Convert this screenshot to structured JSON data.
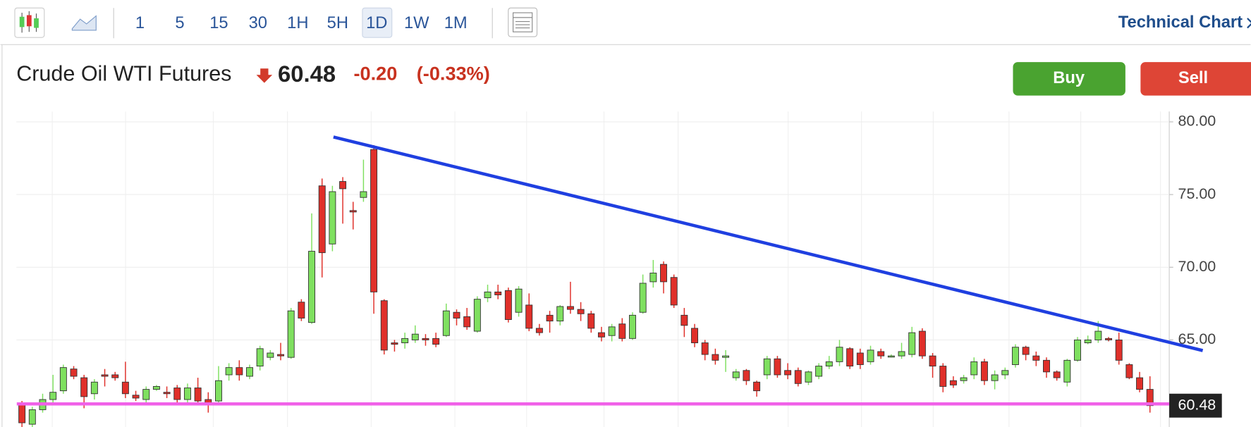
{
  "toolbar": {
    "intervals": [
      "1",
      "5",
      "15",
      "30",
      "1H",
      "5H",
      "1D",
      "1W",
      "1M"
    ],
    "link": "Technical Chart"
  },
  "header": {
    "instrument": "Crude Oil WTI Futures",
    "change": "-0.20",
    "change_pct": "(-0.33%)",
    "buy": "Buy",
    "sell": "Sell"
  },
  "chart_data": {
    "type": "candlestick",
    "up_color": "#7fe060",
    "down_color": "#e0302a",
    "ylim": [
      59.0,
      80.7
    ],
    "yticks": [
      {
        "value": 65,
        "label": "65.00"
      },
      {
        "value": 70,
        "label": "70.00"
      },
      {
        "value": 75,
        "label": "75.00"
      },
      {
        "value": 80,
        "label": "80.00"
      }
    ],
    "grid": true,
    "open": [
      60.6,
      59.2,
      60.2,
      60.9,
      61.5,
      63.0,
      62.4,
      61.3,
      62.6,
      62.6,
      62.1,
      61.2,
      60.9,
      61.6,
      61.4,
      61.7,
      60.9,
      61.7,
      60.9,
      60.8,
      62.6,
      63.1,
      62.5,
      63.2,
      63.8,
      64.0,
      63.8,
      67.6,
      66.2,
      75.6,
      71.6,
      75.9,
      73.9,
      74.8,
      78.1,
      67.7,
      64.8,
      64.8,
      65.0,
      65.1,
      65.1,
      65.3,
      66.9,
      66.6,
      65.6,
      67.9,
      68.3,
      68.4,
      66.9,
      67.4,
      65.8,
      66.7,
      66.3,
      67.3,
      67.1,
      66.8,
      65.5,
      65.3,
      66.1,
      65.1,
      66.9,
      69.0,
      70.2,
      69.3,
      66.7,
      65.8,
      64.8,
      64.0,
      63.8,
      62.4,
      62.9,
      62.1,
      62.6,
      63.7,
      62.9,
      62.9,
      62.1,
      62.5,
      63.2,
      63.5,
      64.4,
      64.1,
      63.5,
      64.2,
      63.9,
      63.9,
      64.0,
      65.6,
      63.9,
      63.2,
      62.2,
      62.2,
      62.6,
      63.5,
      62.2,
      62.6,
      63.3,
      64.5,
      63.9,
      63.6,
      62.8,
      62.1,
      63.6,
      64.8,
      65.0,
      65.1,
      65.0,
      63.3,
      62.4,
      61.6
    ],
    "high": [
      60.8,
      60.4,
      61.3,
      62.6,
      63.3,
      63.2,
      62.6,
      62.3,
      63.0,
      62.8,
      63.5,
      61.5,
      61.8,
      61.9,
      61.8,
      61.9,
      62.0,
      62.4,
      61.4,
      63.2,
      63.4,
      63.6,
      63.3,
      64.6,
      64.3,
      64.8,
      67.2,
      67.8,
      73.7,
      76.1,
      75.6,
      76.2,
      74.5,
      77.4,
      78.4,
      67.8,
      65.0,
      65.5,
      66.0,
      65.4,
      65.5,
      67.5,
      67.1,
      67.2,
      68.0,
      68.8,
      68.8,
      68.6,
      68.7,
      68.2,
      66.1,
      67.0,
      67.4,
      69.0,
      67.6,
      67.0,
      65.9,
      66.1,
      66.5,
      66.9,
      69.5,
      70.5,
      70.4,
      69.5,
      67.2,
      66.1,
      65.0,
      64.4,
      64.3,
      63.0,
      63.0,
      62.2,
      63.9,
      63.9,
      63.4,
      63.1,
      62.9,
      63.4,
      63.9,
      65.0,
      64.5,
      64.4,
      64.6,
      64.4,
      64.0,
      64.8,
      65.9,
      65.8,
      64.1,
      63.4,
      62.5,
      62.6,
      63.8,
      63.7,
      62.9,
      63.1,
      64.7,
      64.6,
      64.2,
      63.8,
      62.9,
      63.7,
      65.2,
      65.3,
      66.3,
      65.2,
      65.5,
      63.4,
      62.8,
      62.5
    ],
    "low": [
      59.0,
      59.0,
      60.0,
      60.7,
      61.3,
      62.3,
      60.3,
      60.9,
      61.8,
      62.2,
      61.0,
      60.8,
      60.5,
      61.5,
      61.0,
      60.5,
      60.7,
      60.5,
      60.0,
      60.7,
      62.2,
      62.2,
      62.3,
      62.9,
      63.6,
      63.6,
      63.7,
      66.3,
      66.1,
      69.3,
      71.1,
      73.0,
      72.6,
      74.5,
      66.8,
      64.0,
      64.2,
      64.4,
      64.8,
      64.6,
      64.5,
      65.2,
      66.0,
      65.7,
      65.5,
      67.6,
      67.8,
      66.2,
      66.6,
      65.6,
      65.3,
      65.5,
      66.0,
      66.8,
      66.3,
      65.5,
      64.9,
      64.9,
      64.9,
      65.0,
      66.8,
      68.6,
      68.2,
      67.2,
      65.2,
      64.5,
      63.6,
      63.3,
      62.8,
      62.2,
      61.9,
      61.1,
      62.3,
      62.4,
      62.3,
      61.8,
      61.9,
      62.3,
      63.0,
      63.2,
      63.0,
      63.0,
      63.3,
      63.7,
      63.8,
      63.7,
      63.8,
      63.7,
      62.4,
      61.4,
      61.7,
      62.0,
      62.3,
      61.9,
      61.6,
      62.3,
      63.1,
      63.6,
      63.2,
      62.4,
      62.2,
      61.8,
      63.5,
      64.7,
      64.8,
      64.9,
      63.3,
      62.3,
      61.4,
      60.0
    ],
    "close": [
      59.3,
      60.2,
      60.9,
      61.4,
      63.1,
      62.5,
      61.1,
      62.1,
      62.5,
      62.4,
      61.3,
      61.0,
      61.6,
      61.8,
      61.3,
      60.9,
      61.7,
      60.8,
      60.6,
      62.2,
      63.1,
      62.6,
      63.1,
      64.4,
      64.1,
      63.9,
      67.0,
      66.5,
      71.1,
      71.0,
      75.2,
      75.4,
      73.8,
      75.2,
      68.3,
      64.3,
      64.7,
      65.1,
      65.4,
      65.0,
      64.7,
      67.0,
      66.5,
      65.9,
      67.8,
      68.3,
      68.1,
      66.4,
      68.5,
      65.8,
      65.5,
      66.3,
      67.3,
      67.1,
      66.8,
      65.8,
      65.2,
      65.9,
      65.1,
      66.7,
      68.9,
      69.6,
      69.0,
      67.4,
      66.0,
      64.8,
      64.0,
      63.6,
      63.9,
      62.8,
      62.2,
      61.5,
      63.7,
      62.6,
      62.6,
      62.0,
      62.8,
      63.2,
      63.5,
      64.5,
      63.2,
      63.3,
      64.3,
      63.9,
      63.9,
      64.2,
      65.5,
      63.9,
      63.2,
      61.8,
      61.9,
      62.4,
      63.5,
      62.2,
      62.6,
      62.9,
      64.5,
      64.0,
      63.6,
      62.8,
      62.4,
      63.6,
      65.0,
      65.0,
      65.6,
      65.0,
      63.6,
      62.4,
      61.6,
      60.48
    ],
    "lines": [
      {
        "color": "#1f3fe0",
        "points": [
          [
            30.1,
            78.96
          ],
          [
            114.1,
            64.27
          ]
        ]
      },
      {
        "color": "#f060e8",
        "points": [
          [
            -0.5,
            60.6
          ],
          [
            111.8,
            60.6
          ]
        ]
      }
    ]
  }
}
